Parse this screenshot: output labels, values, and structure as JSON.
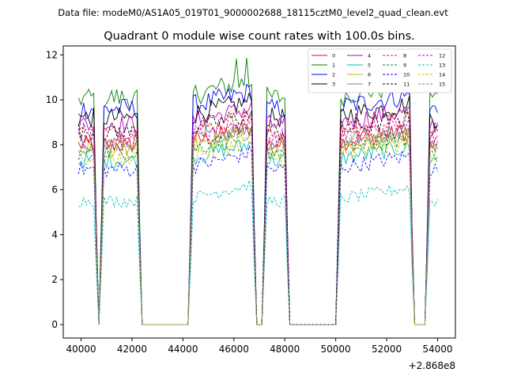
{
  "chart_data": {
    "type": "line",
    "suptitle": "Data file: modeM0/AS1A05_019T01_9000002688_18115cztM0_level2_quad_clean.evt",
    "title": "Quadrant 0 module wise count rates with 100.0s bins.",
    "xlabel": "",
    "ylabel": "",
    "x_offset_label": "+2.868e8",
    "xlim": [
      39300,
      54700
    ],
    "ylim": [
      -0.6,
      12.4
    ],
    "xticks": [
      40000,
      42000,
      44000,
      46000,
      48000,
      50000,
      52000,
      54000
    ],
    "xtick_labels": [
      "40000",
      "42000",
      "44000",
      "46000",
      "48000",
      "50000",
      "52000",
      "54000"
    ],
    "yticks": [
      0,
      2,
      4,
      6,
      8,
      10,
      12
    ],
    "ytick_labels": [
      "0",
      "2",
      "4",
      "6",
      "8",
      "10",
      "12"
    ],
    "legend_position": "top-right",
    "time_grid": {
      "start": 39900,
      "step": 100,
      "count": 142
    },
    "segments": [
      {
        "from": 39900,
        "to": 40500
      },
      {
        "from": 40900,
        "to": 42200
      },
      {
        "from": 44400,
        "to": 46700
      },
      {
        "from": 47300,
        "to": 48000
      },
      {
        "from": 50200,
        "to": 52900
      },
      {
        "from": 53700,
        "to": 54000
      }
    ],
    "series": [
      {
        "name": "0",
        "color": "#ff0000",
        "dash": "solid",
        "level": 8.0
      },
      {
        "name": "1",
        "color": "#008000",
        "dash": "solid",
        "level": 10.1
      },
      {
        "name": "2",
        "color": "#0000ff",
        "dash": "solid",
        "level": 9.6
      },
      {
        "name": "3",
        "color": "#000000",
        "dash": "solid",
        "level": 9.2
      },
      {
        "name": "4",
        "color": "#bf00bf",
        "dash": "solid",
        "level": 8.9
      },
      {
        "name": "5",
        "color": "#00bfbf",
        "dash": "solid",
        "level": 7.3
      },
      {
        "name": "6",
        "color": "#bfbf00",
        "dash": "solid",
        "level": 7.8
      },
      {
        "name": "7",
        "color": "#808080",
        "dash": "solid",
        "level": 8.1
      },
      {
        "name": "8",
        "color": "#ff0000",
        "dash": "dashed",
        "level": 8.5
      },
      {
        "name": "9",
        "color": "#008000",
        "dash": "dashed",
        "level": 7.7
      },
      {
        "name": "10",
        "color": "#0000ff",
        "dash": "dashed",
        "level": 6.9
      },
      {
        "name": "11",
        "color": "#000000",
        "dash": "dashed",
        "level": 8.6
      },
      {
        "name": "12",
        "color": "#bf00bf",
        "dash": "dashed",
        "level": 8.3
      },
      {
        "name": "13",
        "color": "#00bfbf",
        "dash": "dashed",
        "level": 5.5
      },
      {
        "name": "14",
        "color": "#bfbf00",
        "dash": "dashed",
        "level": 7.4
      },
      {
        "name": "15",
        "color": "#808080",
        "dash": "dashed",
        "level": 7.9
      }
    ]
  }
}
